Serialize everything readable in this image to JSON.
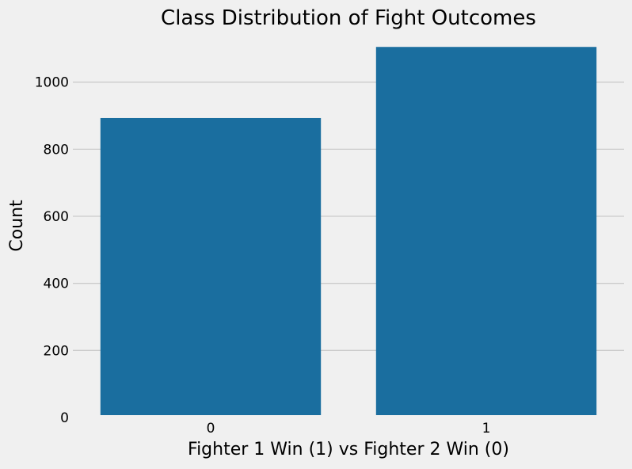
{
  "chart_data": {
    "type": "bar",
    "title": "Class Distribution of Fight Outcomes",
    "xlabel": "Fighter 1 Win (1) vs Fighter 2 Win (0)",
    "ylabel": "Count",
    "categories": [
      "0",
      "1"
    ],
    "values": [
      893,
      1105
    ],
    "ylim": [
      0,
      1115
    ],
    "yticks": [
      0,
      200,
      400,
      600,
      800,
      1000
    ],
    "grid": "y-axis horizontal lines",
    "legend": "none",
    "bar_color": "#1a6e9f",
    "background_color": "#f0f0f0",
    "grid_color": "#cbcbcb"
  }
}
